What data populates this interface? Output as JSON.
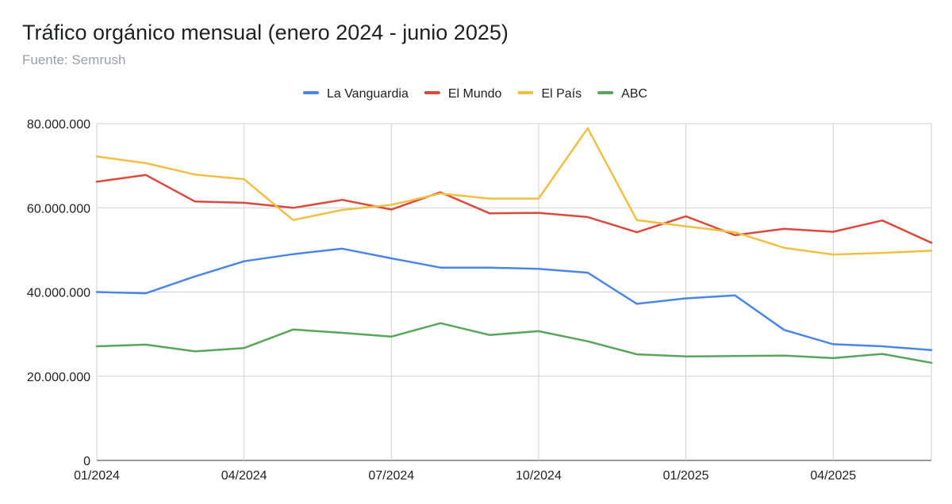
{
  "chart_data": {
    "type": "line",
    "title": "Tráfico orgánico mensual (enero 2024 - junio 2025)",
    "subtitle": "Fuente: Semrush",
    "xlabel": "",
    "ylabel": "",
    "x": [
      "01/2024",
      "02/2024",
      "03/2024",
      "04/2024",
      "05/2024",
      "06/2024",
      "07/2024",
      "08/2024",
      "09/2024",
      "10/2024",
      "11/2024",
      "12/2024",
      "01/2025",
      "02/2025",
      "03/2025",
      "04/2025",
      "05/2025",
      "06/2025"
    ],
    "x_tick_labels": [
      "01/2024",
      "04/2024",
      "07/2024",
      "10/2024",
      "01/2025",
      "04/2025"
    ],
    "y_ticks": [
      0,
      20000000,
      40000000,
      60000000,
      80000000
    ],
    "y_tick_labels": [
      "0",
      "20.000.000",
      "40.000.000",
      "60.000.000",
      "80.000.000"
    ],
    "ylim": [
      0,
      80000000
    ],
    "grid": true,
    "legend_position": "top",
    "series": [
      {
        "name": "La Vanguardia",
        "color": "#4a86e8",
        "values": [
          40000000,
          39700000,
          43700000,
          47300000,
          49000000,
          50300000,
          48000000,
          45800000,
          45800000,
          45500000,
          44600000,
          37200000,
          38500000,
          39200000,
          31000000,
          27600000,
          27100000,
          26200000
        ]
      },
      {
        "name": "El Mundo",
        "color": "#db4a3c",
        "values": [
          66200000,
          67800000,
          61500000,
          61200000,
          60000000,
          61900000,
          59600000,
          63700000,
          58700000,
          58800000,
          57800000,
          54200000,
          58000000,
          53500000,
          55000000,
          54300000,
          57000000,
          51700000
        ]
      },
      {
        "name": "El País",
        "color": "#f1bf42",
        "values": [
          72200000,
          70600000,
          67900000,
          66800000,
          57100000,
          59500000,
          60700000,
          63400000,
          62200000,
          62200000,
          78900000,
          57100000,
          55600000,
          54200000,
          50500000,
          48900000,
          49300000,
          49800000
        ]
      },
      {
        "name": "ABC",
        "color": "#58a55c",
        "values": [
          27100000,
          27500000,
          25900000,
          26700000,
          31100000,
          30300000,
          29400000,
          32600000,
          29800000,
          30700000,
          28300000,
          25200000,
          24700000,
          24800000,
          24900000,
          24300000,
          25300000,
          23200000
        ]
      }
    ]
  }
}
